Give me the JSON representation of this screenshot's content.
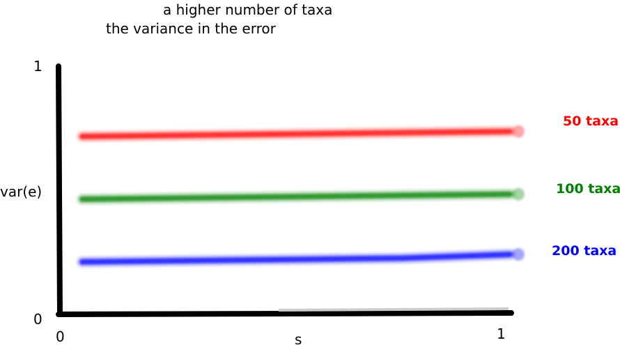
{
  "chart_data": {
    "type": "line",
    "title_lines": [
      "a higher number of taxa",
      "the variance in the error"
    ],
    "xlabel": "s",
    "ylabel": "var(e)",
    "xlim": [
      0,
      1
    ],
    "ylim": [
      0,
      1
    ],
    "x_tick_labels": [
      "0",
      "1"
    ],
    "y_tick_labels": [
      "0",
      "1"
    ],
    "grid": false,
    "legend": "right, labels at line ends",
    "series": [
      {
        "name": "50 taxa",
        "color": "#ff0000",
        "x": [
          0,
          0.25,
          0.5,
          0.75,
          1
        ],
        "values": [
          0.72,
          0.725,
          0.73,
          0.735,
          0.74
        ]
      },
      {
        "name": "100 taxa",
        "color": "#008000",
        "x": [
          0,
          0.25,
          0.5,
          0.75,
          1
        ],
        "values": [
          0.47,
          0.475,
          0.48,
          0.485,
          0.49
        ]
      },
      {
        "name": "200 taxa",
        "color": "#0000ff",
        "x": [
          0,
          0.25,
          0.5,
          0.75,
          1
        ],
        "values": [
          0.22,
          0.225,
          0.23,
          0.235,
          0.25
        ]
      }
    ]
  }
}
